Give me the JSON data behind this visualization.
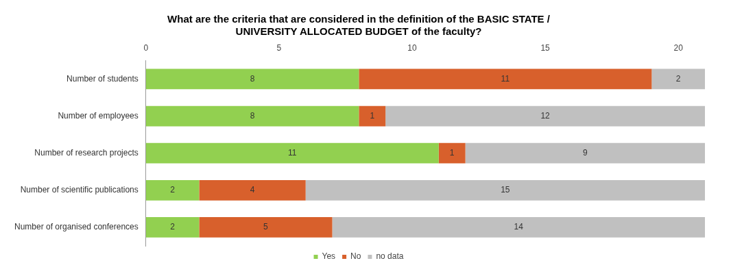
{
  "chart_data": {
    "type": "bar",
    "orientation": "horizontal",
    "stacked": true,
    "title": "What are the criteria that are considered in the definition of the BASIC STATE / UNIVERSITY ALLOCATED BUDGET of the faculty?",
    "categories": [
      "Number of students",
      "Number of employees",
      "Number of research projects",
      "Number of scientific publications",
      "Number of organised conferences"
    ],
    "series": [
      {
        "name": "Yes",
        "color": "#92d050",
        "values": [
          8,
          8,
          11,
          2,
          2
        ]
      },
      {
        "name": "No",
        "color": "#d8602c",
        "values": [
          11,
          1,
          1,
          4,
          5
        ]
      },
      {
        "name": "no data",
        "color": "#c0c0c0",
        "values": [
          2,
          12,
          9,
          15,
          14
        ]
      }
    ],
    "xlim": [
      0,
      21
    ],
    "xticks": [
      0,
      5,
      10,
      15,
      20
    ],
    "grid": false,
    "legend": "bottom",
    "data_labels": true
  }
}
